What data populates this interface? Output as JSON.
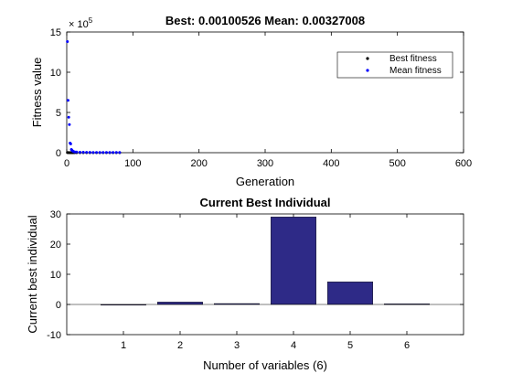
{
  "chart_data": [
    {
      "type": "scatter",
      "title": "Best: 0.00100526 Mean: 0.00327008",
      "xlabel": "Generation",
      "ylabel": "Fitness value",
      "xlim": [
        0,
        600
      ],
      "ylim": [
        0,
        15
      ],
      "exponent_label": "× 10",
      "exponent": "5",
      "xticks": [
        "0",
        "100",
        "200",
        "300",
        "400",
        "500",
        "600"
      ],
      "yticks": [
        "0",
        "5",
        "10",
        "15"
      ],
      "legend_position": "top-right",
      "series": [
        {
          "name": "Best fitness",
          "color": "#000000",
          "x": [
            1,
            2,
            3,
            4,
            5,
            6,
            7,
            8,
            9,
            10,
            12,
            15,
            20,
            25,
            30,
            35,
            40,
            45,
            50,
            55,
            60,
            65,
            70,
            75,
            80
          ],
          "y": [
            0.02,
            0.01,
            0.01,
            0.005,
            0.005,
            0.004,
            0.004,
            0.003,
            0.003,
            0.003,
            0.002,
            0.002,
            0.002,
            0.002,
            0.002,
            0.002,
            0.002,
            0.002,
            0.002,
            0.002,
            0.002,
            0.002,
            0.002,
            0.002,
            0.002
          ]
        },
        {
          "name": "Mean fitness",
          "color": "#0000ff",
          "x": [
            1,
            2,
            3,
            4,
            5,
            6,
            7,
            8,
            9,
            10,
            12,
            15,
            20,
            25,
            30,
            35,
            40,
            45,
            50,
            55,
            60,
            65,
            70,
            75,
            80
          ],
          "y": [
            13.8,
            6.5,
            4.4,
            3.5,
            1.2,
            1.1,
            0.4,
            0.3,
            0.2,
            0.15,
            0.1,
            0.08,
            0.06,
            0.05,
            0.04,
            0.04,
            0.03,
            0.03,
            0.03,
            0.03,
            0.03,
            0.03,
            0.03,
            0.03,
            0.03
          ]
        }
      ]
    },
    {
      "type": "bar",
      "title": "Current Best Individual",
      "xlabel": "Number of variables (6)",
      "ylabel": "Current best individual",
      "categories": [
        "1",
        "2",
        "3",
        "4",
        "5",
        "6"
      ],
      "values": [
        0,
        0.8,
        0.3,
        29,
        7.5,
        0.2
      ],
      "xlim": [
        0,
        7
      ],
      "ylim": [
        -10,
        30
      ],
      "yticks": [
        "-10",
        "0",
        "10",
        "20",
        "30"
      ],
      "bar_color": "#2e2a87"
    }
  ]
}
